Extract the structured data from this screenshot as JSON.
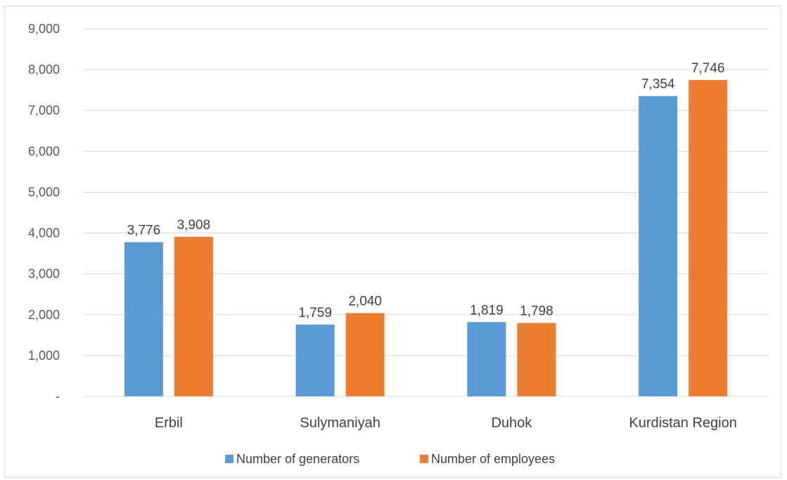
{
  "chart_data": {
    "type": "bar",
    "categories": [
      "Erbil",
      "Sulymaniyah",
      "Duhok",
      "Kurdistan Region"
    ],
    "series": [
      {
        "name": "Number of generators",
        "values": [
          3776,
          1759,
          1819,
          7354
        ],
        "color": "#5b9bd5"
      },
      {
        "name": "Number of employees",
        "values": [
          3908,
          2040,
          1798,
          7746
        ],
        "color": "#ed7d31"
      }
    ],
    "data_labels": [
      [
        "3,776",
        "1,759",
        "1,819",
        "7,354"
      ],
      [
        "3,908",
        "2,040",
        "1,798",
        "7,746"
      ]
    ],
    "y_ticks": [
      "-",
      "1,000",
      "2,000",
      "3,000",
      "4,000",
      "5,000",
      "6,000",
      "7,000",
      "8,000",
      "9,000"
    ],
    "ylim": [
      0,
      9000
    ],
    "y_step": 1000,
    "grid": true,
    "legend_position": "bottom",
    "title": "",
    "xlabel": "",
    "ylabel": ""
  }
}
